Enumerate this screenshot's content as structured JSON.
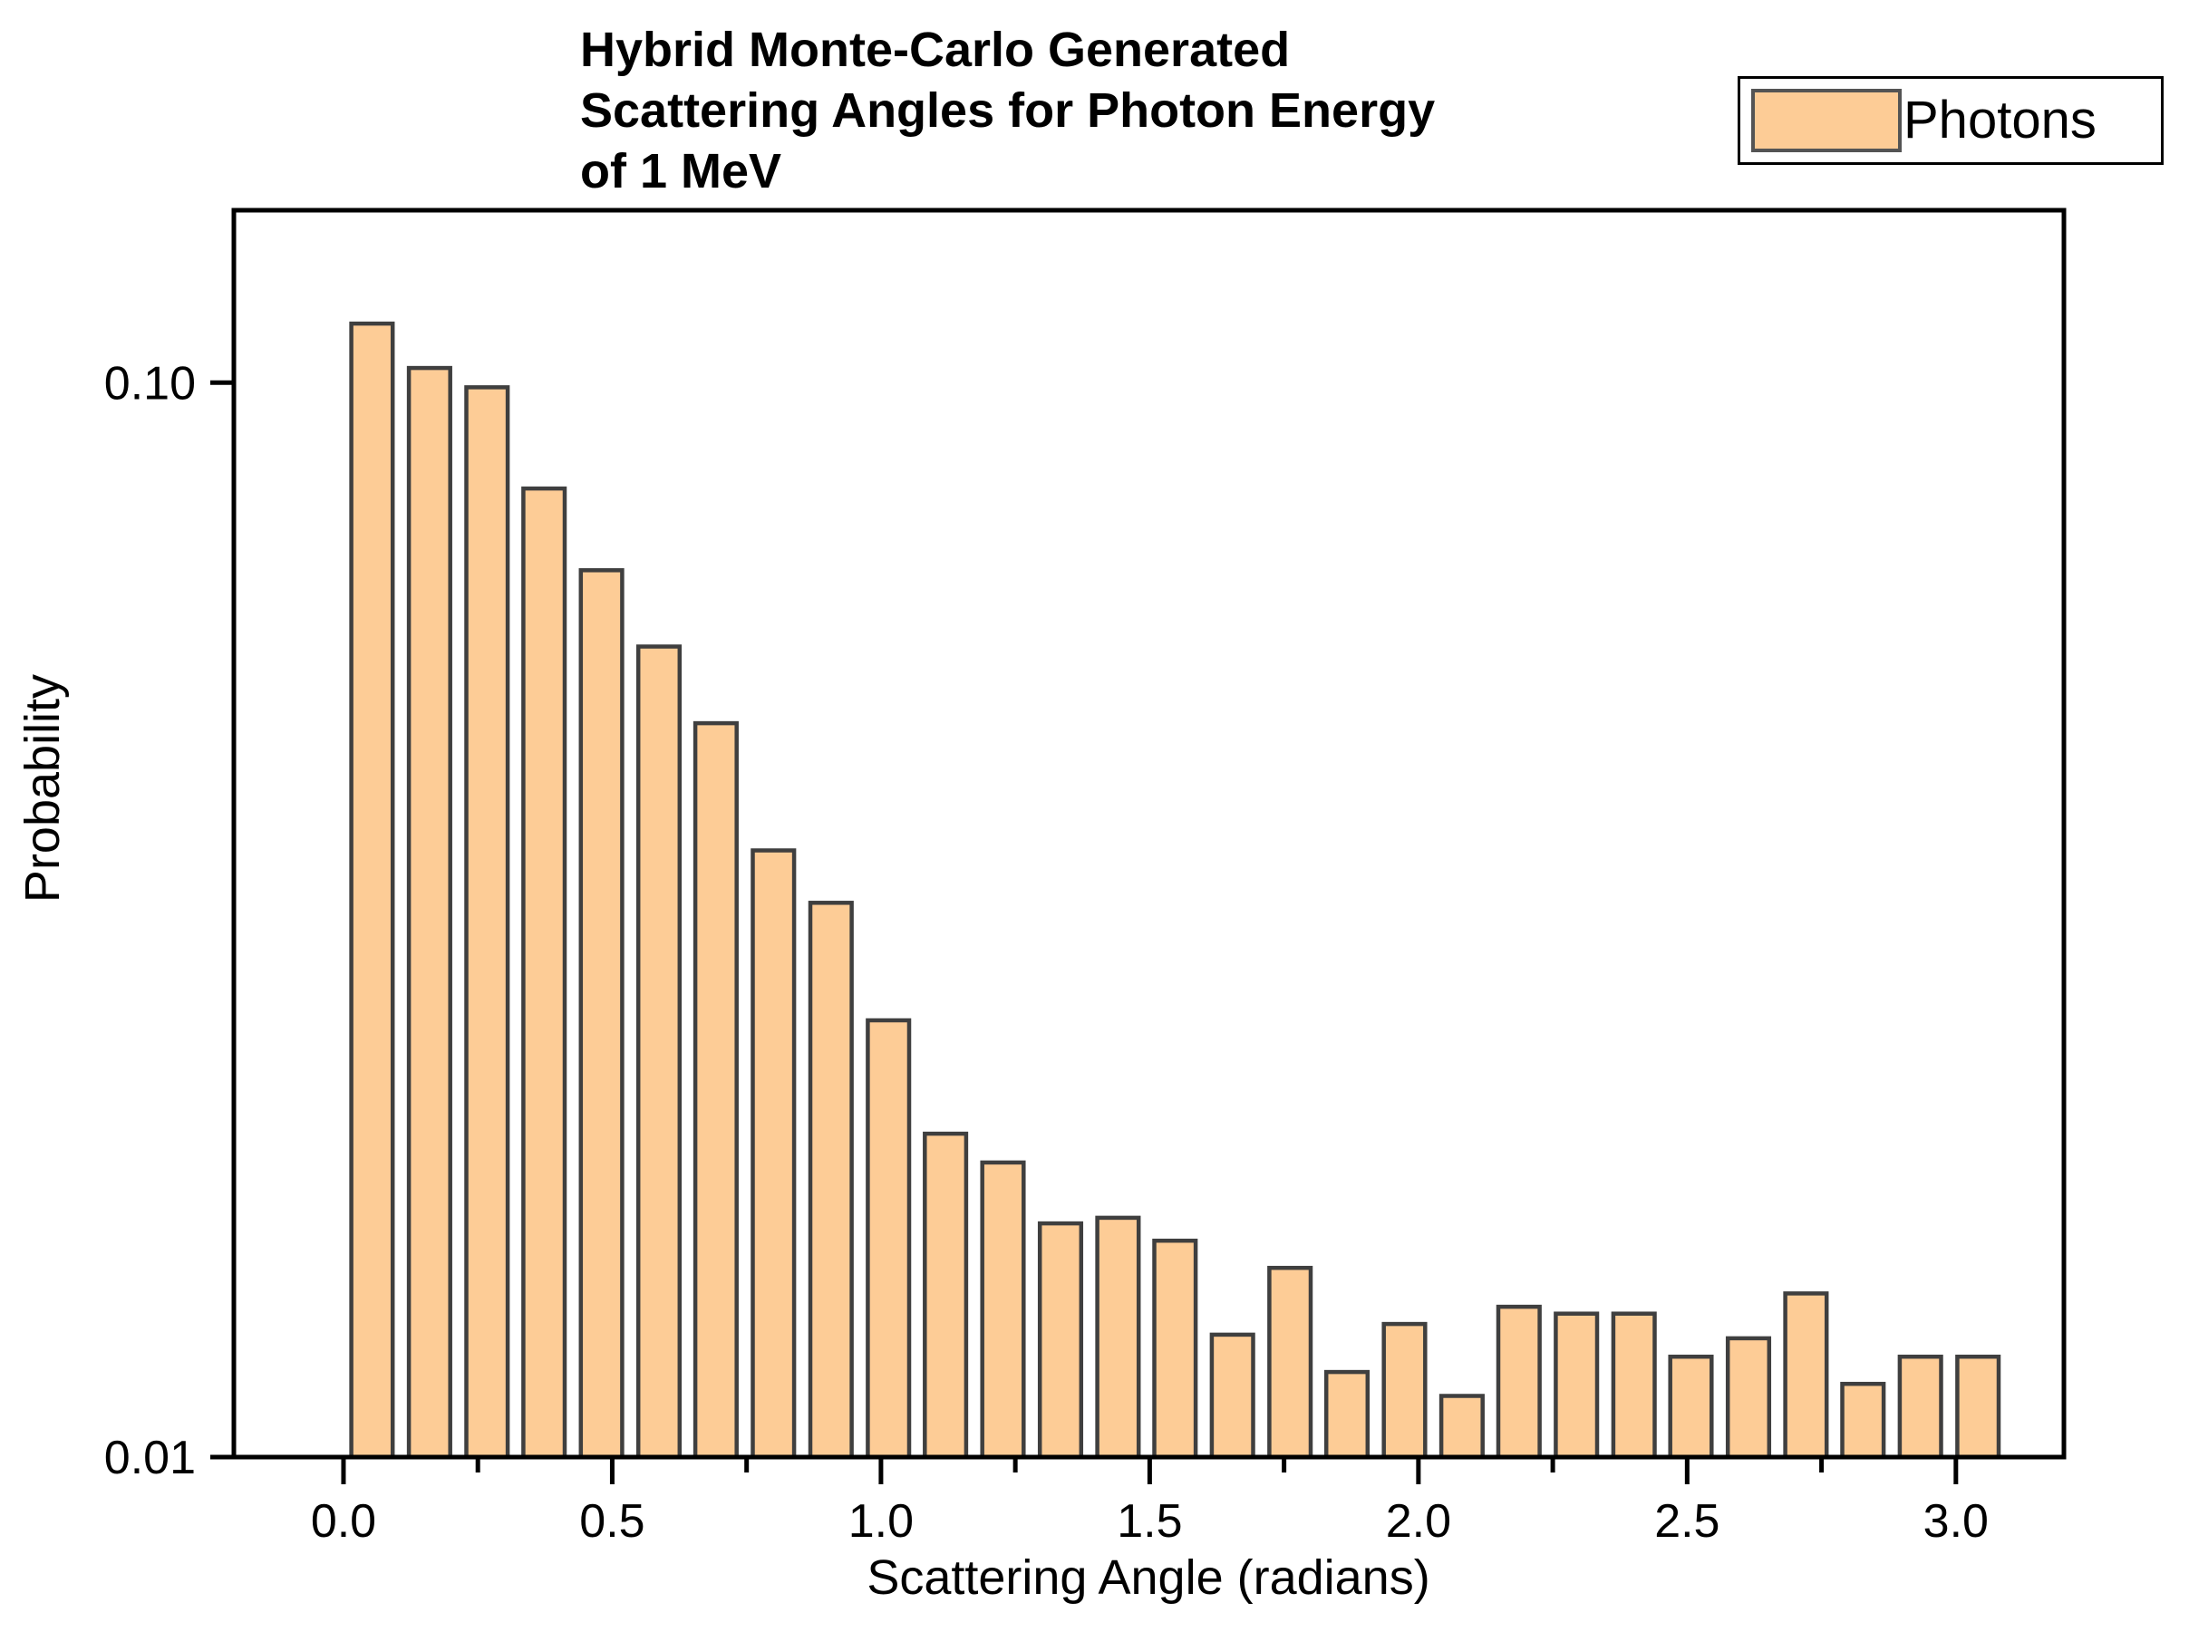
{
  "title": {
    "lines": [
      "Hybrid Monte-Carlo Generated",
      "Scattering Angles for Photon Energy",
      "of 1 MeV"
    ]
  },
  "legend": {
    "label": "Photons",
    "position": "top-right",
    "swatch_fill": "#FDCC96",
    "swatch_border": "#545454"
  },
  "colors": {
    "bar_fill": "#FDCC96",
    "bar_edge": "#3F3F3F",
    "axis": "#000000",
    "text": "#000000",
    "background": "#FFFFFF"
  },
  "chart_data": {
    "type": "bar",
    "title": "Hybrid Monte-Carlo Generated Scattering Angles for Photon Energy of 1 MeV",
    "xlabel": "Scattering Angle (radians)",
    "ylabel": "Probability",
    "series_name": "Photons",
    "x": [
      0.053,
      0.16,
      0.267,
      0.373,
      0.48,
      0.587,
      0.693,
      0.8,
      0.907,
      1.014,
      1.12,
      1.227,
      1.334,
      1.441,
      1.547,
      1.654,
      1.761,
      1.867,
      1.974,
      2.081,
      2.187,
      2.294,
      2.401,
      2.507,
      2.614,
      2.721,
      2.827,
      2.934,
      3.041
    ],
    "values": [
      0.1135,
      0.1032,
      0.099,
      0.0797,
      0.0669,
      0.0568,
      0.0482,
      0.0367,
      0.0328,
      0.0255,
      0.02,
      0.0188,
      0.0165,
      0.0167,
      0.0159,
      0.013,
      0.015,
      0.012,
      0.0133,
      0.0114,
      0.0138,
      0.0136,
      0.0136,
      0.0124,
      0.0129,
      0.0142,
      0.0117,
      0.0124,
      0.0124
    ],
    "bin_width": 0.1067,
    "bar_fill_fraction": 0.72,
    "y_scale": "log",
    "xlim": [
      -0.204,
      3.201
    ],
    "ylim": [
      0.01,
      0.1447
    ],
    "x_ticks_major": [
      {
        "value": 0.0,
        "label": "0.0"
      },
      {
        "value": 0.5,
        "label": "0.5"
      },
      {
        "value": 1.0,
        "label": "1.0"
      },
      {
        "value": 1.5,
        "label": "1.5"
      },
      {
        "value": 2.0,
        "label": "2.0"
      },
      {
        "value": 2.5,
        "label": "2.5"
      },
      {
        "value": 3.0,
        "label": "3.0"
      }
    ],
    "x_ticks_minor": [
      0.25,
      0.75,
      1.25,
      1.75,
      2.25,
      2.75
    ],
    "y_ticks": [
      {
        "value": 0.1,
        "label": "0.10"
      },
      {
        "value": 0.01,
        "label": "0.01"
      }
    ],
    "grid": false,
    "legend_position": "top-right"
  }
}
